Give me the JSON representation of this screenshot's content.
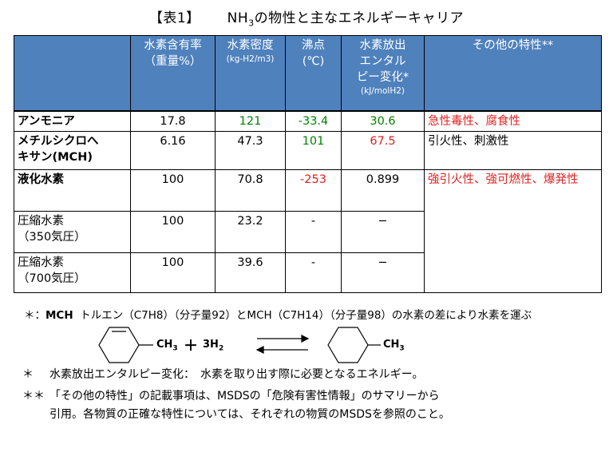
{
  "title": {
    "tag": "【表1】",
    "main": "NH",
    "sub": "3",
    "rest": "の物性と主なエネルギーキャリア"
  },
  "table": {
    "headers": [
      {
        "lines": [
          ""
        ],
        "sub": ""
      },
      {
        "lines": [
          "水素含有率",
          "（重量%）"
        ],
        "sub": ""
      },
      {
        "lines": [
          "水素密度"
        ],
        "sub": "(kg-H2/m3)"
      },
      {
        "lines": [
          "沸点",
          "(℃)"
        ],
        "sub": ""
      },
      {
        "lines": [
          "水素放出",
          "エンタル",
          "ピー変化*"
        ],
        "sub": "(kJ/molH2)"
      },
      {
        "lines": [
          "その他の特性**"
        ],
        "sub": ""
      }
    ],
    "rows": [
      {
        "name": [
          "アンモニア"
        ],
        "h2": "17.8",
        "density": "121",
        "bp": "-33.4",
        "dh": "30.6",
        "prop": "急性毒性、腐食性"
      },
      {
        "name": [
          "メチルシクロへ",
          "キサン(MCH)"
        ],
        "h2": "6.16",
        "density": "47.3",
        "bp": "101",
        "dh": "67.5",
        "prop": "引火性、刺激性"
      },
      {
        "name": [
          "液化水素"
        ],
        "h2": "100",
        "density": "70.8",
        "bp": "-253",
        "dh": "0.899",
        "prop": "強引火性、強可燃性、爆発性"
      },
      {
        "name": [
          "圧縮水素",
          "（350気圧）"
        ],
        "h2": "100",
        "density": "23.2",
        "bp": "-",
        "dh": "−",
        "prop": ""
      },
      {
        "name": [
          "圧縮水素",
          "（700気圧）"
        ],
        "h2": "100",
        "density": "39.6",
        "bp": "-",
        "dh": "−",
        "prop": ""
      }
    ],
    "colors": {
      "header_bg": "#4f81bd",
      "green": "#008000",
      "red": "#e02020"
    }
  },
  "note1": {
    "prefix": "＊：",
    "mch": "MCH",
    "text": "トルエン（C7H8）（分子量92）とMCH（C7H14）（分子量98）の水素の差により水素を運ぶ"
  },
  "reaction": {
    "left_group": "CH3",
    "plus": "＋",
    "h2": "3H2",
    "right_group": "CH3"
  },
  "notes": {
    "star_mark": "＊",
    "star_text": "水素放出エンタルピー変化：　水素を取り出す際に必要となるエネルギー。",
    "dstar_mark": "＊＊",
    "dstar_line1": "「その他の特性」の記載事項は、MSDSの「危険有害性情報」のサマリーから",
    "dstar_line2": "引用。各物質の正確な特性については、それぞれの物質のMSDSを参照のこと。"
  }
}
